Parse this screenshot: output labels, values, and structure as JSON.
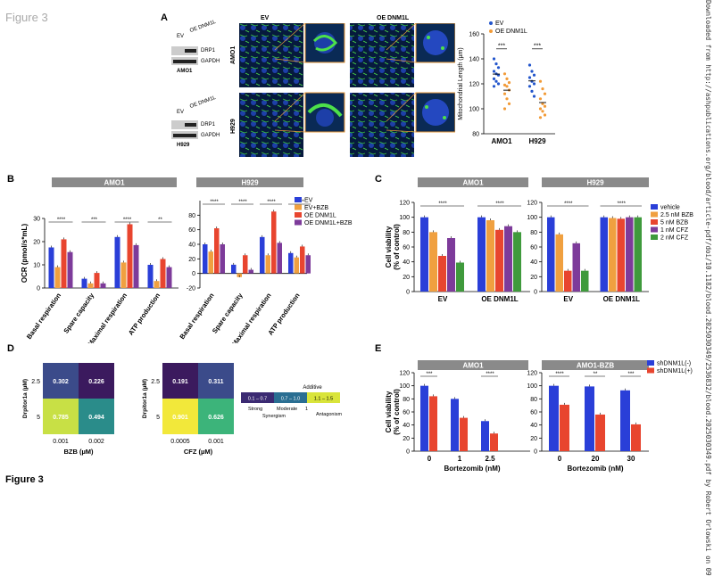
{
  "figure_label_top": "Figure 3",
  "figure_label_bottom": "Figure 3",
  "side_text": "Downloaded from http://ashpublications.org/blood/article-pdf/doi/10.1182/blood.2025030349/2536832/blood.2025030349.pdf by Robert Orlowski on 09",
  "panels": {
    "A": {
      "letter": "A",
      "wb1": {
        "lanes": [
          "EV",
          "OE DNM1L"
        ],
        "bands": [
          "DRP1",
          "GAPDH"
        ],
        "cell": "AMO1"
      },
      "wb2": {
        "lanes": [
          "EV",
          "OE DNM1L"
        ],
        "bands": [
          "DRP1",
          "GAPDH"
        ],
        "cell": "H929"
      },
      "micro_cols": [
        "EV",
        "OE DNM1L"
      ],
      "micro_rows": [
        "AMO1",
        "H929"
      ]
    },
    "B": {
      "letter": "B"
    },
    "C": {
      "letter": "C"
    },
    "D": {
      "letter": "D"
    },
    "E": {
      "letter": "E"
    }
  },
  "chart_data": [
    {
      "id": "A-mito",
      "type": "scatter",
      "ylabel": "Mitochondrial Length (µm)",
      "ylim": [
        80,
        160
      ],
      "yticks": [
        80,
        100,
        120,
        140,
        160
      ],
      "categories": [
        "AMO1",
        "H929"
      ],
      "series": [
        {
          "name": "EV",
          "color": "#2255cc"
        },
        {
          "name": "OE DNM1L",
          "color": "#f29b38"
        }
      ],
      "groups": [
        {
          "category": "AMO1",
          "EV": [
            140,
            136,
            133,
            130,
            128,
            127,
            124,
            122,
            120,
            118
          ],
          "OE DNM1L": [
            128,
            124,
            121,
            119,
            118,
            115,
            112,
            108,
            104,
            100
          ],
          "sig": "***"
        },
        {
          "category": "H929",
          "EV": [
            135,
            130,
            127,
            125,
            122,
            120,
            118,
            114,
            110
          ],
          "OE DNM1L": [
            122,
            116,
            112,
            108,
            104,
            102,
            100,
            98,
            95,
            93
          ],
          "sig": "***"
        }
      ]
    },
    {
      "id": "B-AMO1",
      "type": "bar",
      "title": "AMO1",
      "ylabel": "OCR (pmol/s*mL)",
      "ylim": [
        0,
        30
      ],
      "yticks": [
        0,
        10,
        20,
        30
      ],
      "categories": [
        "Basal respiration",
        "Spare capacity",
        "Maximal respiration",
        "ATP production"
      ],
      "series": [
        {
          "name": "EV",
          "color": "#2a3fd8",
          "values": [
            17.5,
            4,
            22,
            10
          ]
        },
        {
          "name": "EV+BZB",
          "color": "#f0a040",
          "values": [
            9,
            2,
            11,
            3
          ]
        },
        {
          "name": "OE DNM1L",
          "color": "#e8452f",
          "values": [
            21,
            6.5,
            27.5,
            12.5
          ]
        },
        {
          "name": "OE DNM1L+BZB",
          "color": "#7d3b9a",
          "values": [
            15.5,
            2,
            18.5,
            9
          ]
        }
      ]
    },
    {
      "id": "B-H929",
      "type": "bar",
      "title": "H929",
      "ylim": [
        -20,
        100
      ],
      "yticks": [
        -20,
        0,
        20,
        40,
        60,
        80
      ],
      "categories": [
        "Basal respiration",
        "Spare capacity",
        "Maximal respiration",
        "ATP production"
      ],
      "legend": [
        "EV",
        "EV+BZB",
        "OE DNM1L",
        "OE DNM1L+BZB"
      ],
      "series": [
        {
          "name": "EV",
          "color": "#2a3fd8",
          "values": [
            40,
            12,
            50,
            28
          ]
        },
        {
          "name": "EV+BZB",
          "color": "#f0a040",
          "values": [
            30,
            -5,
            25,
            22
          ]
        },
        {
          "name": "OE DNM1L",
          "color": "#e8452f",
          "values": [
            62,
            25,
            85,
            37
          ]
        },
        {
          "name": "OE DNM1L+BZB",
          "color": "#7d3b9a",
          "values": [
            40,
            5,
            42,
            25
          ]
        }
      ]
    },
    {
      "id": "C-AMO1",
      "type": "bar",
      "title": "AMO1",
      "ylabel": "Cell viability (% of control)",
      "ylim": [
        0,
        120
      ],
      "yticks": [
        0,
        20,
        40,
        60,
        80,
        100,
        120
      ],
      "categories": [
        "EV",
        "OE DNM1L"
      ],
      "series": [
        {
          "name": "vehicle",
          "color": "#2a3fd8",
          "values": [
            100,
            100
          ]
        },
        {
          "name": "2.5 nM BZB",
          "color": "#f0a040",
          "values": [
            80,
            96
          ]
        },
        {
          "name": "5 nM BZB",
          "color": "#e8452f",
          "values": [
            48,
            83
          ]
        },
        {
          "name": "1 nM CFZ",
          "color": "#7d3b9a",
          "values": [
            72,
            88
          ]
        },
        {
          "name": "2 nM CFZ",
          "color": "#3f9a3c",
          "values": [
            39,
            80
          ]
        }
      ]
    },
    {
      "id": "C-H929",
      "type": "bar",
      "title": "H929",
      "ylim": [
        0,
        120
      ],
      "yticks": [
        0,
        20,
        40,
        60,
        80,
        100,
        120
      ],
      "categories": [
        "EV",
        "OE DNM1L"
      ],
      "legend": [
        "vehicle",
        "2.5 nM BZB",
        "5 nM BZB",
        "1 nM CFZ",
        "2 nM CFZ"
      ],
      "series": [
        {
          "name": "vehicle",
          "color": "#2a3fd8",
          "values": [
            100,
            100
          ]
        },
        {
          "name": "2.5 nM BZB",
          "color": "#f0a040",
          "values": [
            77,
            99
          ]
        },
        {
          "name": "5 nM BZB",
          "color": "#e8452f",
          "values": [
            28,
            98
          ]
        },
        {
          "name": "1 nM CFZ",
          "color": "#7d3b9a",
          "values": [
            65,
            100
          ]
        },
        {
          "name": "2 nM CFZ",
          "color": "#3f9a3c",
          "values": [
            28,
            100
          ]
        }
      ]
    },
    {
      "id": "D-BZB",
      "type": "heatmap",
      "xlabel": "BZB (µM)",
      "ylabel": "Drpitor1a (µM)",
      "x": [
        "0.001",
        "0.002"
      ],
      "y": [
        "2.5",
        "5"
      ],
      "values": [
        [
          0.302,
          0.226
        ],
        [
          0.785,
          0.494
        ]
      ],
      "labels": [
        [
          "0.302",
          "0.226"
        ],
        [
          "0.785",
          "0.494"
        ]
      ]
    },
    {
      "id": "D-CFZ",
      "type": "heatmap",
      "xlabel": "CFZ (µM)",
      "ylabel": "Drpitor1a (µM)",
      "x": [
        "0.0005",
        "0.001"
      ],
      "y": [
        "2.5",
        "5"
      ],
      "values": [
        [
          0.191,
          0.311
        ],
        [
          0.901,
          0.626
        ]
      ],
      "labels": [
        [
          "0.191",
          "0.311"
        ],
        [
          "0.901",
          "0.626"
        ]
      ]
    },
    {
      "id": "D-legend",
      "type": "table",
      "title": "Additive",
      "ranges": [
        "0.1 – 0.7",
        "0.7 – 1.0",
        "1.1 – 1.5"
      ],
      "labels": [
        "Strong",
        "Moderate",
        "1",
        "Antagonism",
        "Synergism"
      ]
    },
    {
      "id": "E-AMO1",
      "type": "bar",
      "title": "AMO1",
      "xlabel": "Bortezomib (nM)",
      "ylabel": "Cell viability (% of control)",
      "ylim": [
        0,
        120
      ],
      "yticks": [
        0,
        20,
        40,
        60,
        80,
        100,
        120
      ],
      "categories": [
        "0",
        "1",
        "2.5"
      ],
      "series": [
        {
          "name": "shDNM1L(-)",
          "color": "#2a3fd8",
          "values": [
            100,
            80,
            46
          ]
        },
        {
          "name": "shDNM1L(+)",
          "color": "#e8452f",
          "values": [
            84,
            51,
            27
          ]
        }
      ]
    },
    {
      "id": "E-AMO1-BZB",
      "type": "bar",
      "title": "AMO1-BZB",
      "xlabel": "Bortezomib (nM)",
      "ylim": [
        0,
        120
      ],
      "yticks": [
        0,
        20,
        40,
        60,
        80,
        100,
        120
      ],
      "categories": [
        "0",
        "20",
        "30"
      ],
      "legend": [
        "shDNM1L(-)",
        "shDNM1L(+)"
      ],
      "series": [
        {
          "name": "shDNM1L(-)",
          "color": "#2a3fd8",
          "values": [
            100,
            99,
            93
          ]
        },
        {
          "name": "shDNM1L(+)",
          "color": "#e8452f",
          "values": [
            71,
            56,
            41
          ]
        }
      ]
    }
  ]
}
